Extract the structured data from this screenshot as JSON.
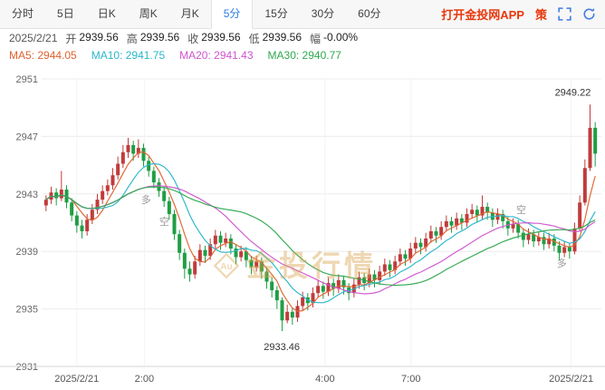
{
  "header": {
    "tabs": [
      "分时",
      "5日",
      "日K",
      "周K",
      "月K",
      "5分",
      "15分",
      "30分",
      "60分"
    ],
    "active_tab": "5分",
    "app_link": "打开金投网APP",
    "strategy_label": "策",
    "accent_blue": "#2b7de0",
    "accent_red": "#e8380d"
  },
  "info_bar": {
    "date": "2025/2/21",
    "items": [
      {
        "label": "开",
        "value": "2939.56"
      },
      {
        "label": "高",
        "value": "2939.56"
      },
      {
        "label": "收",
        "value": "2939.56"
      },
      {
        "label": "低",
        "value": "2939.56"
      },
      {
        "label": "幅",
        "value": "-0.00%"
      }
    ]
  },
  "ma_bar": [
    {
      "text": "MA5: 2944.05",
      "color": "#e0622e"
    },
    {
      "text": "MA10: 2941.75",
      "color": "#2ab6c9"
    },
    {
      "text": "MA20: 2941.43",
      "color": "#cf55cf"
    },
    {
      "text": "MA30: 2940.77",
      "color": "#2fa84f"
    }
  ],
  "watermark": {
    "logo": "Au",
    "text": "金投行情",
    "color": "#d8a24a"
  },
  "chart_data": {
    "type": "candlestick",
    "title": "Gold 5-minute K-line 2025/2/21",
    "ylim": [
      2931,
      2951
    ],
    "y_ticks": [
      2951,
      2947,
      2943,
      2939,
      2935,
      2931
    ],
    "x_labels": [
      {
        "label": "2025/2/21",
        "pos": 0.06
      },
      {
        "label": "2:00",
        "pos": 0.182
      },
      {
        "label": "4:00",
        "pos": 0.508
      },
      {
        "label": "7:00",
        "pos": 0.663
      },
      {
        "label": "2025/2/21",
        "pos": 0.952
      }
    ],
    "up_color": "#c13b3b",
    "down_color": "#1f9e44",
    "ma_lines": [
      {
        "name": "MA5",
        "period": 5,
        "color": "#e0622e"
      },
      {
        "name": "MA10",
        "period": 10,
        "color": "#2ab6c9"
      },
      {
        "name": "MA20",
        "period": 20,
        "color": "#cf55cf"
      },
      {
        "name": "MA30",
        "period": 30,
        "color": "#2fa84f"
      }
    ],
    "annotations": [
      {
        "text": "2949.22",
        "xf": 0.955,
        "price": 2950.1,
        "color": "#333",
        "size": 11
      },
      {
        "text": "2933.46",
        "xf": 0.43,
        "price": 2932.4,
        "color": "#333",
        "size": 11
      },
      {
        "text": "多",
        "xf": 0.185,
        "price": 2942.6,
        "color": "#999",
        "size": 11
      },
      {
        "text": "空",
        "xf": 0.218,
        "price": 2941.1,
        "color": "#999",
        "size": 11
      },
      {
        "text": "空",
        "xf": 0.862,
        "price": 2941.9,
        "color": "#999",
        "size": 11
      },
      {
        "text": "多",
        "xf": 0.935,
        "price": 2938.2,
        "color": "#999",
        "size": 11
      }
    ],
    "candles": [
      [
        2942.2,
        2942.9,
        2941.8,
        2942.6
      ],
      [
        2942.6,
        2943.5,
        2942.3,
        2943.1
      ],
      [
        2943.1,
        2943.4,
        2942.2,
        2942.7
      ],
      [
        2942.7,
        2944.6,
        2942.5,
        2943.3
      ],
      [
        2943.3,
        2943.6,
        2942.0,
        2942.4
      ],
      [
        2942.4,
        2942.7,
        2941.1,
        2941.5
      ],
      [
        2941.5,
        2941.8,
        2940.3,
        2940.8
      ],
      [
        2940.8,
        2941.2,
        2939.9,
        2940.4
      ],
      [
        2940.4,
        2941.6,
        2940.1,
        2941.2
      ],
      [
        2941.2,
        2942.3,
        2940.9,
        2941.9
      ],
      [
        2941.9,
        2943.0,
        2941.6,
        2942.6
      ],
      [
        2942.6,
        2943.6,
        2942.3,
        2943.2
      ],
      [
        2943.2,
        2944.0,
        2942.9,
        2943.6
      ],
      [
        2943.6,
        2944.8,
        2943.3,
        2944.3
      ],
      [
        2944.3,
        2945.6,
        2944.0,
        2945.1
      ],
      [
        2945.1,
        2946.4,
        2944.8,
        2945.9
      ],
      [
        2945.9,
        2946.9,
        2945.5,
        2946.4
      ],
      [
        2946.4,
        2946.7,
        2945.3,
        2945.8
      ],
      [
        2945.8,
        2946.8,
        2945.5,
        2946.2
      ],
      [
        2946.2,
        2946.5,
        2944.9,
        2945.3
      ],
      [
        2945.3,
        2945.6,
        2944.2,
        2944.6
      ],
      [
        2944.6,
        2944.9,
        2943.4,
        2943.8
      ],
      [
        2943.8,
        2944.1,
        2942.8,
        2943.2
      ],
      [
        2943.2,
        2943.5,
        2942.1,
        2942.5
      ],
      [
        2942.5,
        2942.8,
        2941.2,
        2941.6
      ],
      [
        2941.6,
        2941.9,
        2939.8,
        2940.2
      ],
      [
        2940.2,
        2940.5,
        2938.4,
        2938.9
      ],
      [
        2938.9,
        2939.2,
        2937.1,
        2937.8
      ],
      [
        2937.8,
        2938.3,
        2936.9,
        2937.4
      ],
      [
        2937.4,
        2938.7,
        2937.1,
        2938.3
      ],
      [
        2938.3,
        2939.5,
        2938.0,
        2939.1
      ],
      [
        2939.1,
        2939.4,
        2938.2,
        2938.7
      ],
      [
        2938.7,
        2939.9,
        2938.4,
        2939.5
      ],
      [
        2939.5,
        2940.5,
        2939.2,
        2940.1
      ],
      [
        2940.1,
        2940.4,
        2939.1,
        2939.6
      ],
      [
        2939.6,
        2940.3,
        2939.3,
        2939.9
      ],
      [
        2939.9,
        2940.2,
        2938.8,
        2939.2
      ],
      [
        2939.2,
        2939.5,
        2938.1,
        2938.6
      ],
      [
        2938.6,
        2939.4,
        2938.3,
        2939.0
      ],
      [
        2939.0,
        2939.3,
        2937.9,
        2938.4
      ],
      [
        2938.4,
        2938.7,
        2937.4,
        2937.9
      ],
      [
        2937.9,
        2938.7,
        2937.6,
        2938.3
      ],
      [
        2938.3,
        2938.6,
        2937.1,
        2937.6
      ],
      [
        2937.6,
        2937.9,
        2936.4,
        2936.9
      ],
      [
        2936.9,
        2937.2,
        2935.8,
        2936.3
      ],
      [
        2936.3,
        2936.6,
        2935.0,
        2935.6
      ],
      [
        2935.6,
        2935.8,
        2933.46,
        2934.2
      ],
      [
        2934.2,
        2935.3,
        2934.0,
        2934.8
      ],
      [
        2934.8,
        2935.1,
        2933.9,
        2934.4
      ],
      [
        2934.4,
        2935.6,
        2934.1,
        2935.2
      ],
      [
        2935.2,
        2936.2,
        2934.9,
        2935.8
      ],
      [
        2935.8,
        2936.1,
        2934.9,
        2935.4
      ],
      [
        2935.4,
        2936.5,
        2935.1,
        2936.1
      ],
      [
        2936.1,
        2937.0,
        2935.8,
        2936.6
      ],
      [
        2936.6,
        2936.9,
        2935.7,
        2936.2
      ],
      [
        2936.2,
        2937.2,
        2935.9,
        2936.8
      ],
      [
        2936.8,
        2937.1,
        2935.9,
        2936.4
      ],
      [
        2936.4,
        2937.4,
        2936.1,
        2937.0
      ],
      [
        2937.0,
        2937.3,
        2936.0,
        2936.5
      ],
      [
        2936.5,
        2936.8,
        2935.6,
        2936.1
      ],
      [
        2936.1,
        2937.1,
        2935.8,
        2936.7
      ],
      [
        2936.7,
        2937.6,
        2936.4,
        2937.2
      ],
      [
        2937.2,
        2937.5,
        2936.3,
        2936.8
      ],
      [
        2936.8,
        2937.8,
        2936.5,
        2937.4
      ],
      [
        2937.4,
        2937.7,
        2936.5,
        2937.0
      ],
      [
        2937.0,
        2938.0,
        2936.7,
        2937.6
      ],
      [
        2937.6,
        2938.5,
        2937.3,
        2938.1
      ],
      [
        2938.1,
        2938.4,
        2937.2,
        2937.7
      ],
      [
        2937.7,
        2938.7,
        2937.4,
        2938.3
      ],
      [
        2938.3,
        2939.2,
        2938.0,
        2938.8
      ],
      [
        2938.8,
        2939.1,
        2938.0,
        2938.5
      ],
      [
        2938.5,
        2939.6,
        2938.2,
        2939.2
      ],
      [
        2939.2,
        2940.0,
        2938.9,
        2939.6
      ],
      [
        2939.6,
        2939.9,
        2938.8,
        2939.3
      ],
      [
        2939.3,
        2940.3,
        2939.0,
        2939.9
      ],
      [
        2939.9,
        2940.8,
        2939.6,
        2940.4
      ],
      [
        2940.4,
        2940.7,
        2939.6,
        2940.1
      ],
      [
        2940.1,
        2941.1,
        2939.8,
        2940.7
      ],
      [
        2940.7,
        2941.5,
        2940.4,
        2941.1
      ],
      [
        2941.1,
        2941.4,
        2940.3,
        2940.8
      ],
      [
        2940.8,
        2941.7,
        2940.5,
        2941.3
      ],
      [
        2941.3,
        2941.6,
        2940.5,
        2941.0
      ],
      [
        2941.0,
        2942.0,
        2940.7,
        2941.6
      ],
      [
        2941.6,
        2942.3,
        2941.3,
        2941.9
      ],
      [
        2941.9,
        2942.2,
        2941.0,
        2941.5
      ],
      [
        2941.5,
        2942.9,
        2941.2,
        2942.1
      ],
      [
        2942.1,
        2942.4,
        2941.2,
        2941.7
      ],
      [
        2941.7,
        2942.0,
        2940.7,
        2941.2
      ],
      [
        2941.2,
        2942.0,
        2940.9,
        2941.6
      ],
      [
        2941.6,
        2941.9,
        2940.6,
        2941.1
      ],
      [
        2941.1,
        2941.4,
        2940.1,
        2940.6
      ],
      [
        2940.6,
        2941.3,
        2940.3,
        2940.9
      ],
      [
        2940.9,
        2941.2,
        2939.9,
        2940.3
      ],
      [
        2940.3,
        2940.6,
        2939.3,
        2939.8
      ],
      [
        2939.8,
        2940.6,
        2939.5,
        2940.2
      ],
      [
        2940.2,
        2940.5,
        2939.3,
        2939.7
      ],
      [
        2939.7,
        2940.4,
        2939.4,
        2940.0
      ],
      [
        2940.0,
        2940.3,
        2939.1,
        2939.5
      ],
      [
        2939.5,
        2940.3,
        2939.2,
        2939.9
      ],
      [
        2939.9,
        2940.2,
        2939.0,
        2939.4
      ],
      [
        2939.4,
        2939.7,
        2938.4,
        2938.9
      ],
      [
        2938.9,
        2939.7,
        2938.6,
        2939.3
      ],
      [
        2939.3,
        2939.6,
        2938.5,
        2939.0
      ],
      [
        2939.0,
        2941.0,
        2938.8,
        2940.6
      ],
      [
        2940.6,
        2942.9,
        2940.4,
        2942.4
      ],
      [
        2942.4,
        2945.4,
        2942.2,
        2944.8
      ],
      [
        2944.8,
        2949.22,
        2944.6,
        2947.6
      ],
      [
        2947.6,
        2948.0,
        2944.9,
        2945.8
      ]
    ]
  }
}
